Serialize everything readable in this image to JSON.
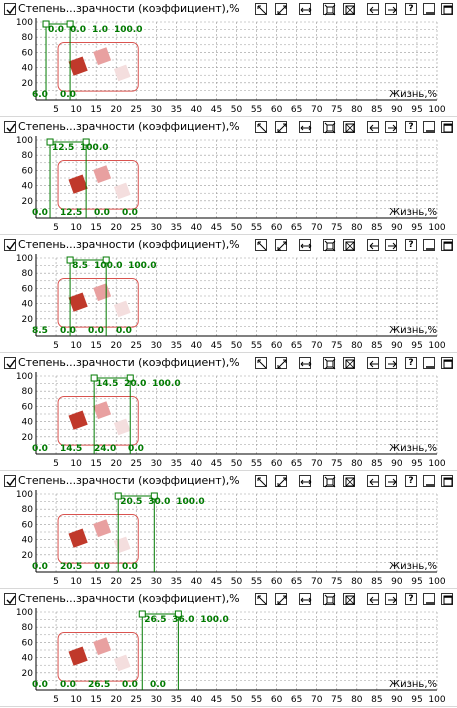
{
  "toolbar": {
    "title": "Степень...зрачности (коэффициент),%",
    "help_label": "?",
    "buttons": [
      "checkbox-icon",
      "pan-icon",
      "zoom-diagonal-icon",
      "zoom-horizontal-icon",
      "fit-icon",
      "zoom-box-icon",
      "arrow-left-icon",
      "arrow-right-icon",
      "help-icon",
      "minimize-icon",
      "maximize-icon"
    ]
  },
  "colors": {
    "accent": "#007a00",
    "grid": "#999999",
    "highlight": "#d9534f",
    "square_dark": "#c0392b",
    "square_mid": "#e8a0a0",
    "square_light": "#f4dede"
  },
  "chart_data": [
    {
      "type": "line",
      "xlabel": "Жизнь,%",
      "yticks": [
        "100",
        "80",
        "60",
        "40",
        "20"
      ],
      "xticks": [
        "5",
        "10",
        "15",
        "20",
        "25",
        "30",
        "35",
        "40",
        "45",
        "50",
        "55",
        "60",
        "65",
        "70",
        "75",
        "80",
        "85",
        "90",
        "95",
        "100"
      ],
      "xlim": [
        0,
        100
      ],
      "ylim": [
        0,
        100
      ],
      "grid": true,
      "markers": {
        "a": 2.5,
        "b": 8.5
      },
      "labels_top": [
        "0.0",
        "0.0",
        "1.0",
        "100.0"
      ],
      "labels_bottom": [
        "6.0",
        "0.0"
      ]
    },
    {
      "type": "line",
      "xlabel": "Жизнь,%",
      "yticks": [
        "100",
        "80",
        "60",
        "40",
        "20"
      ],
      "xticks": [
        "5",
        "10",
        "15",
        "20",
        "25",
        "30",
        "35",
        "40",
        "45",
        "50",
        "55",
        "60",
        "65",
        "70",
        "75",
        "80",
        "85",
        "90",
        "95",
        "100"
      ],
      "xlim": [
        0,
        100
      ],
      "ylim": [
        0,
        100
      ],
      "grid": true,
      "markers": {
        "a": 3.5,
        "b": 12.5
      },
      "labels_top": [
        "12.5",
        "100.0"
      ],
      "labels_bottom": [
        "0.0",
        "12.5",
        "0.0",
        "0.0"
      ]
    },
    {
      "type": "line",
      "xlabel": "Жизнь,%",
      "yticks": [
        "100",
        "80",
        "60",
        "40",
        "20"
      ],
      "xticks": [
        "5",
        "10",
        "15",
        "20",
        "25",
        "30",
        "35",
        "40",
        "45",
        "50",
        "55",
        "60",
        "65",
        "70",
        "75",
        "80",
        "85",
        "90",
        "95",
        "100"
      ],
      "xlim": [
        0,
        100
      ],
      "ylim": [
        0,
        100
      ],
      "grid": true,
      "markers": {
        "a": 8.5,
        "b": 17.5
      },
      "labels_top": [
        "8.5",
        "100.0",
        "100.0"
      ],
      "labels_bottom": [
        "8.5",
        "0.0",
        "0.0",
        "0.0"
      ]
    },
    {
      "type": "line",
      "xlabel": "Жизнь,%",
      "yticks": [
        "100",
        "80",
        "60",
        "40",
        "20"
      ],
      "xticks": [
        "5",
        "10",
        "15",
        "20",
        "25",
        "30",
        "35",
        "40",
        "45",
        "50",
        "55",
        "60",
        "65",
        "70",
        "75",
        "80",
        "85",
        "90",
        "95",
        "100"
      ],
      "xlim": [
        0,
        100
      ],
      "ylim": [
        0,
        100
      ],
      "grid": true,
      "markers": {
        "a": 14.5,
        "b": 23.5
      },
      "labels_top": [
        "14.5",
        "20.0",
        "100.0"
      ],
      "labels_bottom": [
        "0.0",
        "14.5",
        "24.0",
        "0.0"
      ]
    },
    {
      "type": "line",
      "xlabel": "Жизнь,%",
      "yticks": [
        "100",
        "80",
        "60",
        "40",
        "20"
      ],
      "xticks": [
        "5",
        "10",
        "15",
        "20",
        "25",
        "30",
        "35",
        "40",
        "45",
        "50",
        "55",
        "60",
        "65",
        "70",
        "75",
        "80",
        "85",
        "90",
        "95",
        "100"
      ],
      "xlim": [
        0,
        100
      ],
      "ylim": [
        0,
        100
      ],
      "grid": true,
      "markers": {
        "a": 20.5,
        "b": 29.5
      },
      "labels_top": [
        "20.5",
        "30.0",
        "100.0"
      ],
      "labels_bottom": [
        "0.0",
        "20.5",
        "0.0",
        "0.0"
      ]
    },
    {
      "type": "line",
      "xlabel": "Жизнь,%",
      "yticks": [
        "100",
        "80",
        "60",
        "40",
        "20"
      ],
      "xticks": [
        "5",
        "10",
        "15",
        "20",
        "25",
        "30",
        "35",
        "40",
        "45",
        "50",
        "55",
        "60",
        "65",
        "70",
        "75",
        "80",
        "85",
        "90",
        "95",
        "100"
      ],
      "xlim": [
        0,
        100
      ],
      "ylim": [
        0,
        100
      ],
      "grid": true,
      "markers": {
        "a": 26.5,
        "b": 35.5
      },
      "labels_top": [
        "26.5",
        "36.0",
        "100.0"
      ],
      "labels_bottom": [
        "0.0",
        "0.0",
        "26.5",
        "0.0",
        "0.0"
      ]
    }
  ]
}
